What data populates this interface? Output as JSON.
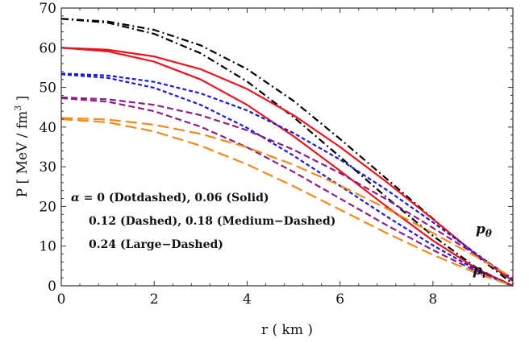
{
  "chart_data": {
    "type": "line",
    "xlabel": "r  ( km )",
    "ylabel": "P  [ MeV / fm",
    "ylabel_sup": "3",
    "ylabel_close": " ]",
    "xlim": [
      0,
      9.72
    ],
    "ylim": [
      0,
      70
    ],
    "xticks": [
      0,
      2,
      4,
      6,
      8
    ],
    "yticks": [
      0,
      10,
      20,
      30,
      40,
      50,
      60,
      70
    ],
    "grid": false,
    "annotations": {
      "line1_alpha": "α",
      "line1_rest": " = 0 (Dotdashed), 0.06 (Solid)",
      "line2": "0.12 (Dashed), 0.18 (Medium−Dashed)",
      "line3": "0.24 (Large−Dashed)",
      "p_theta_main": "p",
      "p_theta_sub": "θ",
      "p_r_main": "p",
      "p_r_sub": "r"
    },
    "series": [
      {
        "alpha": "0",
        "style": "dotdashed",
        "color": "#000000",
        "quantity": "p_theta",
        "x": [
          0,
          1,
          2,
          3,
          4,
          5,
          6,
          7,
          8,
          9,
          9.72
        ],
        "y": [
          67.3,
          66.6,
          64.5,
          60.6,
          54.6,
          46.6,
          37.0,
          27.0,
          16.9,
          7.0,
          0.5
        ]
      },
      {
        "alpha": "0",
        "style": "dotdashed",
        "color": "#000000",
        "quantity": "p_r",
        "x": [
          0,
          1,
          2,
          3,
          4,
          5,
          6,
          7,
          8,
          9,
          9.72
        ],
        "y": [
          67.3,
          66.3,
          63.5,
          58.6,
          51.5,
          42.5,
          32.5,
          22.3,
          12.6,
          4.0,
          0
        ]
      },
      {
        "alpha": "0.06",
        "style": "solid",
        "color": "#e8141e",
        "quantity": "p_theta",
        "x": [
          0,
          1,
          2,
          3,
          4,
          5,
          6,
          7,
          8,
          9,
          9.72
        ],
        "y": [
          60.0,
          59.5,
          57.8,
          54.6,
          49.6,
          43.0,
          35.0,
          26.2,
          16.8,
          7.2,
          1.2
        ]
      },
      {
        "alpha": "0.06",
        "style": "solid",
        "color": "#e8141e",
        "quantity": "p_r",
        "x": [
          0,
          1,
          2,
          3,
          4,
          5,
          6,
          7,
          8,
          9,
          9.72
        ],
        "y": [
          60.0,
          59.1,
          56.5,
          52.0,
          45.6,
          37.7,
          29.0,
          20.0,
          11.4,
          3.9,
          0
        ]
      },
      {
        "alpha": "0.12",
        "style": "dashed",
        "color": "#1a1ad6",
        "quantity": "p_theta",
        "x": [
          0,
          1,
          2,
          3,
          4,
          5,
          6,
          7,
          8,
          9,
          9.72
        ],
        "y": [
          53.5,
          53.0,
          51.4,
          48.5,
          44.2,
          38.5,
          31.8,
          24.2,
          16.0,
          7.5,
          1.5
        ]
      },
      {
        "alpha": "0.12",
        "style": "dashed",
        "color": "#1a1ad6",
        "quantity": "p_r",
        "x": [
          0,
          1,
          2,
          3,
          4,
          5,
          6,
          7,
          8,
          9,
          9.72
        ],
        "y": [
          53.3,
          52.4,
          49.9,
          45.6,
          39.8,
          32.8,
          25.2,
          17.5,
          10.2,
          3.6,
          0
        ]
      },
      {
        "alpha": "0.18",
        "style": "medium-dashed",
        "color": "#8a1e8a",
        "quantity": "p_theta",
        "x": [
          0,
          1,
          2,
          3,
          4,
          5,
          6,
          7,
          8,
          9,
          9.72
        ],
        "y": [
          47.5,
          47.0,
          45.6,
          43.0,
          39.2,
          34.3,
          28.4,
          21.8,
          14.6,
          7.3,
          1.8
        ]
      },
      {
        "alpha": "0.18",
        "style": "medium-dashed",
        "color": "#8a1e8a",
        "quantity": "p_r",
        "x": [
          0,
          1,
          2,
          3,
          4,
          5,
          6,
          7,
          8,
          9,
          9.72
        ],
        "y": [
          47.3,
          46.4,
          44.0,
          40.1,
          34.9,
          28.7,
          22.0,
          15.3,
          9.0,
          3.3,
          0
        ]
      },
      {
        "alpha": "0.24",
        "style": "large-dashed",
        "color": "#f28a1a",
        "quantity": "p_theta",
        "x": [
          0,
          1,
          2,
          3,
          4,
          5,
          6,
          7,
          8,
          9,
          9.72
        ],
        "y": [
          42.3,
          41.9,
          40.6,
          38.3,
          34.9,
          30.5,
          25.3,
          19.5,
          13.3,
          6.9,
          2.0
        ]
      },
      {
        "alpha": "0.24",
        "style": "large-dashed",
        "color": "#f28a1a",
        "quantity": "p_r",
        "x": [
          0,
          1,
          2,
          3,
          4,
          5,
          6,
          7,
          8,
          9,
          9.72
        ],
        "y": [
          42.0,
          41.2,
          38.9,
          35.3,
          30.6,
          25.1,
          19.2,
          13.3,
          7.8,
          2.9,
          0
        ]
      }
    ]
  }
}
